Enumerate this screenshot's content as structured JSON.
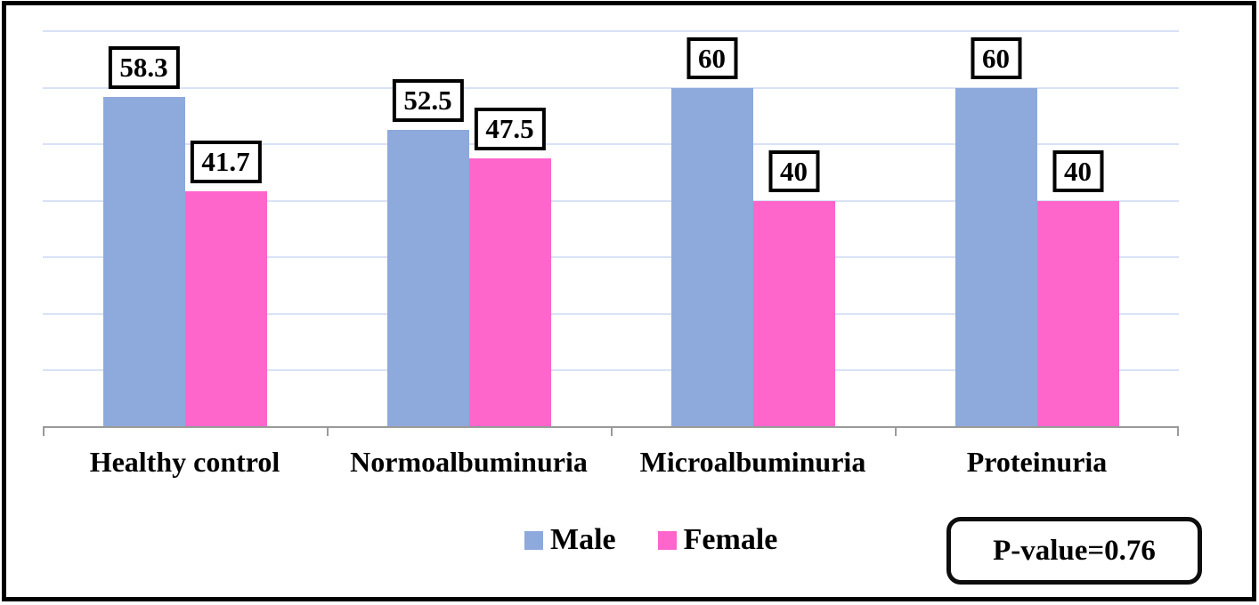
{
  "chart_data": {
    "type": "bar",
    "title": "",
    "xlabel": "",
    "ylabel": "",
    "categories": [
      "Healthy control",
      "Normoalbuminuria",
      "Microalbuminuria",
      "Proteinuria"
    ],
    "series": [
      {
        "name": "Male",
        "color": "#8EA9DC",
        "values": [
          58.3,
          52.5,
          60,
          60
        ]
      },
      {
        "name": "Female",
        "color": "#FF66CC",
        "values": [
          41.7,
          47.5,
          40,
          40
        ]
      }
    ],
    "data_labels_shown": true,
    "data_label_style": "boxed",
    "ylim": [
      0,
      70
    ],
    "grid_step": 10,
    "grid": true,
    "y_axis_tick_labels_visible": false,
    "legend_position": "bottom",
    "annotation": "P-value=0.76",
    "colors": {
      "male": "#8EA9DC",
      "female": "#FF66CC",
      "gridline": "#D9E2F5",
      "axis": "#9a9a9a",
      "frame_border": "#000000",
      "label_box_border": "#000000",
      "background": "#FFFFFF"
    }
  }
}
